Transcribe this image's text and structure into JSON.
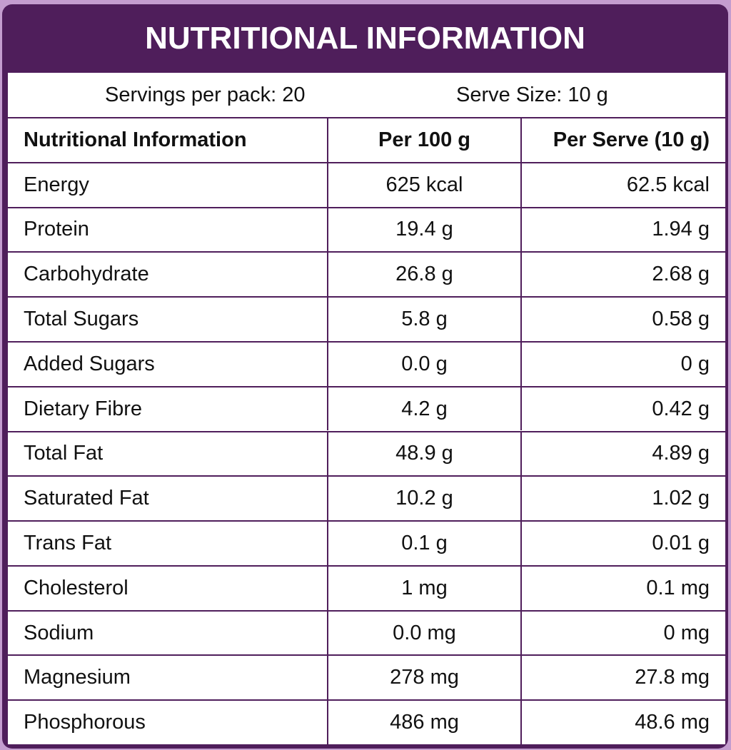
{
  "header": {
    "title": "NUTRITIONAL INFORMATION",
    "servings": "Servings per pack: 20",
    "serve_size": "Serve Size: 10 g"
  },
  "table": {
    "header": [
      "Nutritional Information",
      "Per 100 g",
      "Per Serve (10 g)"
    ],
    "rows": [
      [
        "Energy",
        "625 kcal",
        "62.5 kcal"
      ],
      [
        "Protein",
        "19.4 g",
        "1.94 g"
      ],
      [
        "Carbohydrate",
        "26.8 g",
        "2.68 g"
      ],
      [
        "Total Sugars",
        "5.8 g",
        "0.58 g"
      ],
      [
        "Added Sugars",
        "0.0 g",
        "0 g"
      ],
      [
        "Dietary Fibre",
        "4.2 g",
        "0.42 g"
      ],
      [
        "Total Fat",
        "48.9 g",
        "4.89 g"
      ],
      [
        "Saturated Fat",
        "10.2 g",
        "1.02 g"
      ],
      [
        "Trans Fat",
        "0.1 g",
        "0.01 g"
      ],
      [
        "Cholesterol",
        "1 mg",
        "0.1 mg"
      ],
      [
        "Sodium",
        "0.0 mg",
        "0 mg"
      ],
      [
        "Magnesium",
        "278 mg",
        "27.8 mg"
      ],
      [
        "Phosphorous",
        "486 mg",
        "48.6 mg"
      ]
    ]
  }
}
